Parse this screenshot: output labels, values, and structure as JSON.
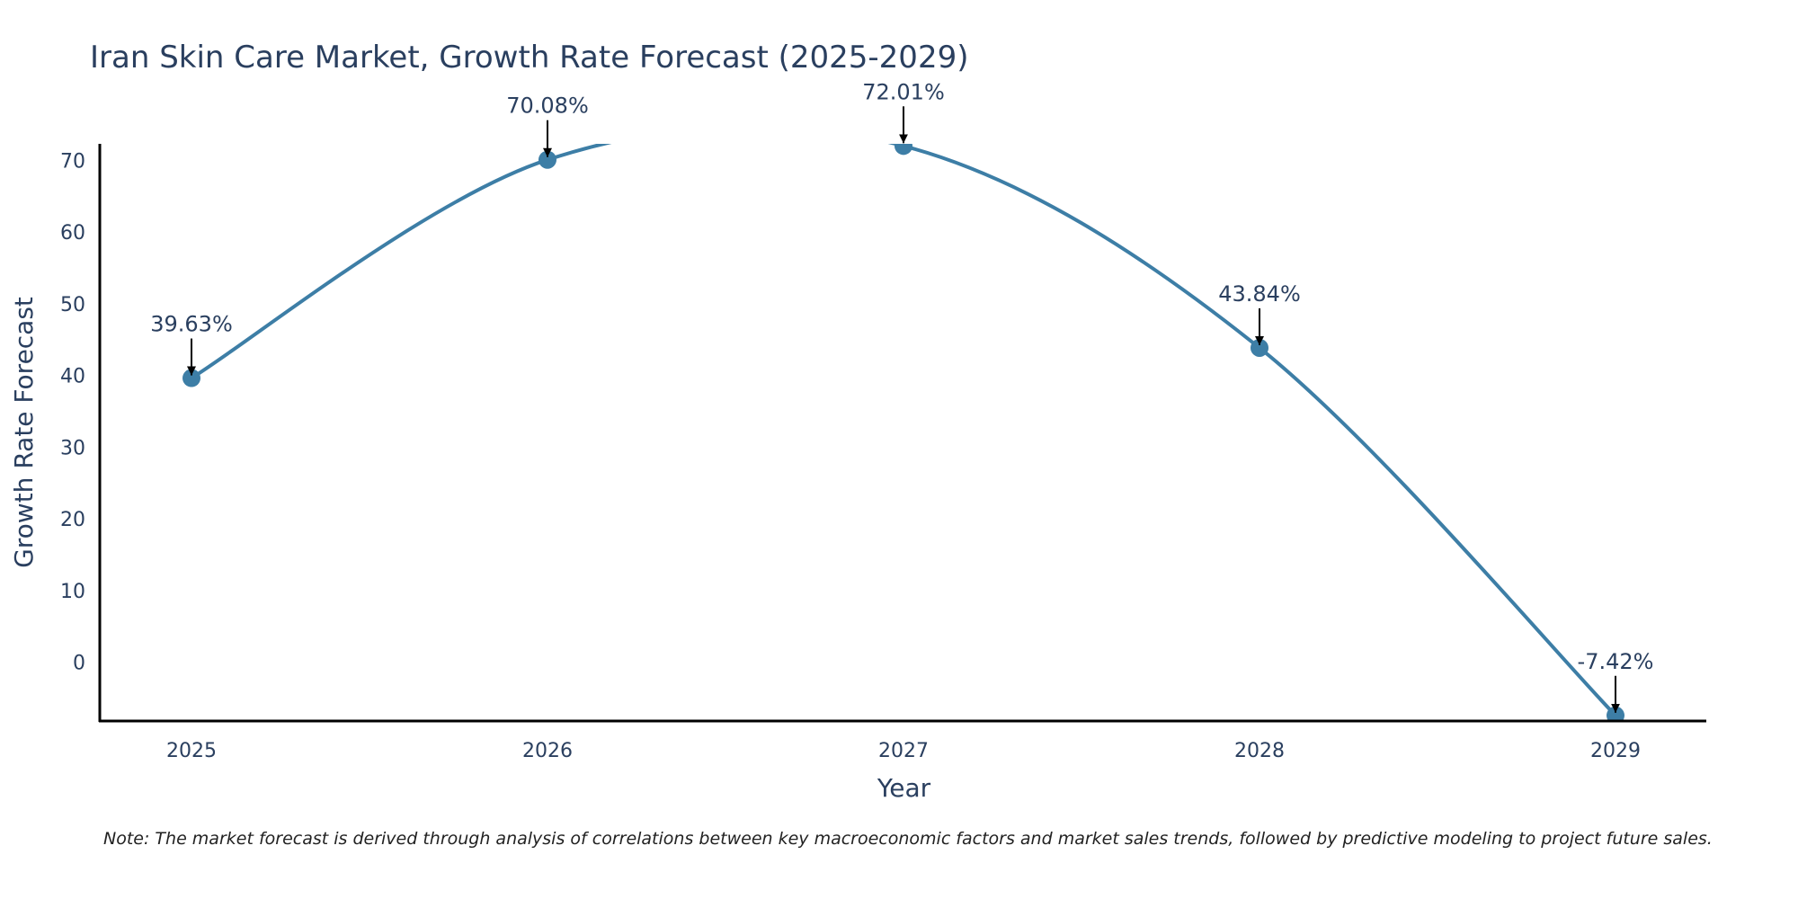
{
  "chart_data": {
    "type": "line",
    "title": "Iran Skin Care Market, Growth Rate Forecast (2025-2029)",
    "xlabel": "Year",
    "ylabel": "Growth Rate Forecast",
    "categories": [
      "2025",
      "2026",
      "2027",
      "2028",
      "2029"
    ],
    "values": [
      39.63,
      70.08,
      72.01,
      43.84,
      -7.42
    ],
    "labels": [
      "39.63%",
      "70.08%",
      "72.01%",
      "43.84%",
      "-7.42%"
    ],
    "yticks": [
      0,
      10,
      20,
      30,
      40,
      50,
      60,
      70
    ],
    "ylim": [
      -8.2,
      72.3
    ],
    "grid": false,
    "line_color": "#3d7ea6",
    "marker_color": "#3d7ea6",
    "note": "Note: The market forecast is derived through analysis of correlations between key macroeconomic factors and market sales trends, followed by predictive modeling to project future sales."
  }
}
